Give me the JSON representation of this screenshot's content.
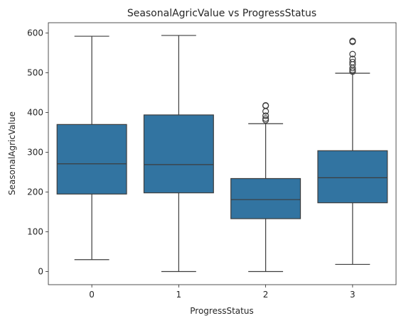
{
  "chart_data": {
    "type": "box",
    "title": "SeasonalAgricValue vs ProgressStatus",
    "xlabel": "ProgressStatus",
    "ylabel": "SeasonalAgricValue",
    "categories": [
      "0",
      "1",
      "2",
      "3"
    ],
    "ylim": [
      -33,
      626
    ],
    "yticks": [
      0,
      100,
      200,
      300,
      400,
      500,
      600
    ],
    "grid": false,
    "box_color": "#3274a1",
    "line_color": "#3d3d3d",
    "boxes": [
      {
        "category": "0",
        "whisker_low": 30,
        "q1": 195,
        "median": 271,
        "q3": 370,
        "whisker_high": 592,
        "outliers": []
      },
      {
        "category": "1",
        "whisker_low": 0,
        "q1": 198,
        "median": 269,
        "q3": 394,
        "whisker_high": 594,
        "outliers": []
      },
      {
        "category": "2",
        "whisker_low": 0,
        "q1": 133,
        "median": 181,
        "q3": 234,
        "whisker_high": 372,
        "outliers": [
          381,
          385,
          392,
          403,
          417,
          418
        ]
      },
      {
        "category": "3",
        "whisker_low": 18,
        "q1": 173,
        "median": 236,
        "q3": 304,
        "whisker_high": 499,
        "outliers": [
          503,
          507,
          512,
          521,
          527,
          535,
          547,
          578,
          580
        ]
      }
    ]
  }
}
